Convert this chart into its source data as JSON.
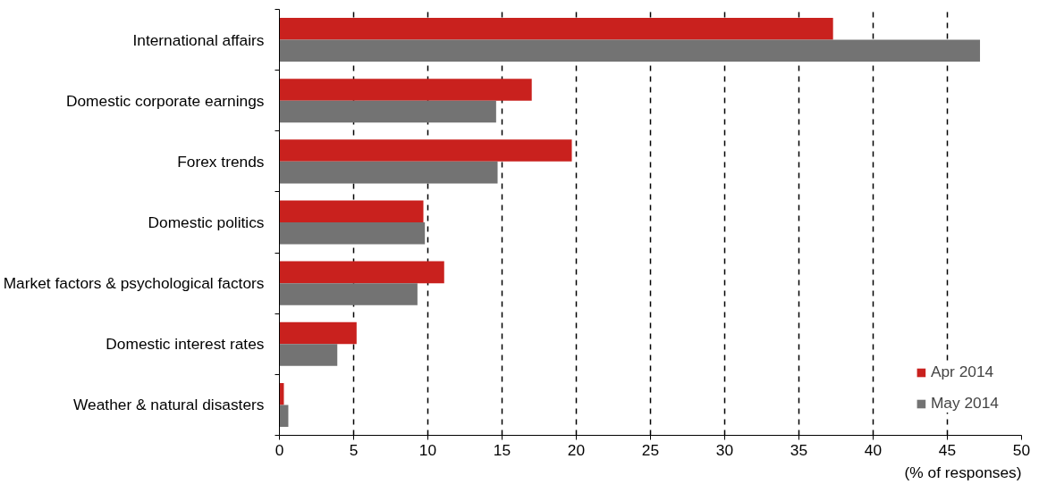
{
  "chart_data": {
    "type": "bar",
    "orientation": "horizontal",
    "categories": [
      "International affairs",
      "Domestic corporate earnings",
      "Forex trends",
      "Domestic politics",
      "Market factors & psychological factors",
      "Domestic interest rates",
      "Weather & natural disasters"
    ],
    "series": [
      {
        "name": "Apr 2014",
        "color": "#c9211e",
        "values": [
          37.3,
          17.0,
          19.7,
          9.7,
          11.1,
          5.2,
          0.3
        ]
      },
      {
        "name": "May 2014",
        "color": "#737373",
        "values": [
          47.2,
          14.6,
          14.7,
          9.8,
          9.3,
          3.9,
          0.6
        ]
      }
    ],
    "xlim": [
      0,
      50
    ],
    "xticks": [
      0,
      5,
      10,
      15,
      20,
      25,
      30,
      35,
      40,
      45,
      50
    ],
    "grid": "x",
    "line_style": "dashed",
    "legend": "bottom right",
    "annotations": [
      "(% of responses)"
    ]
  }
}
